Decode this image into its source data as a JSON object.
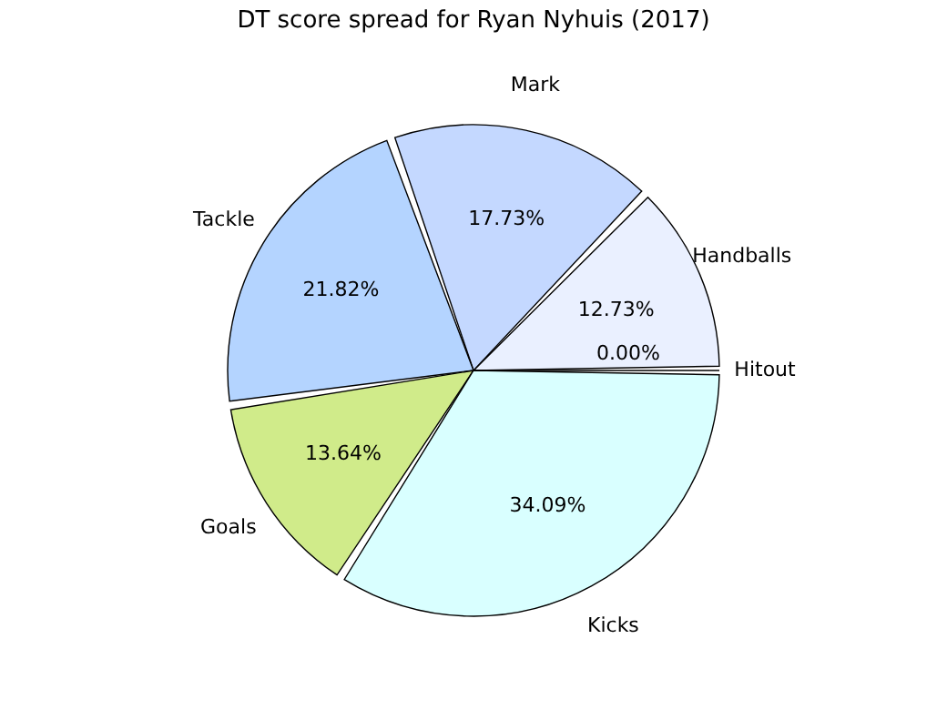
{
  "chart_data": {
    "type": "pie",
    "title": "DT score spread for Ryan Nyhuis (2017)",
    "categories": [
      "Handballs",
      "Mark",
      "Tackle",
      "Goals",
      "Kicks",
      "Hitout"
    ],
    "values": [
      12.73,
      17.73,
      21.82,
      13.64,
      34.09,
      0.0
    ],
    "value_labels": [
      "12.73%",
      "17.73%",
      "21.82%",
      "13.64%",
      "34.09%",
      "0.00%"
    ],
    "colors": [
      "#eaf0ff",
      "#c4d8ff",
      "#b4d4ff",
      "#d0eb8a",
      "#d9ffff",
      "#e0e0e0"
    ]
  }
}
